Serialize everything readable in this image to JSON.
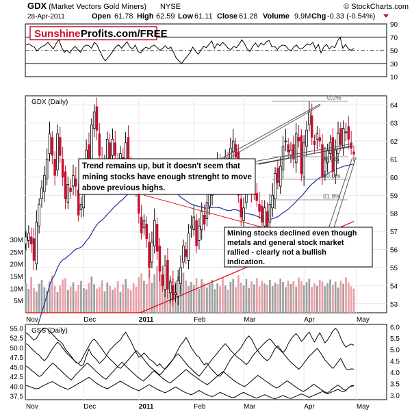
{
  "header": {
    "symbol": "GDX",
    "name": "(Market Vectors Gold Miners)",
    "exchange": "NYSE",
    "source": "© StockCharts.com",
    "date": "28-Apr-2011",
    "open_label": "Open",
    "open": "61.78",
    "high_label": "High",
    "high": "62.59",
    "low_label": "Low",
    "low": "61.11",
    "close_label": "Close",
    "close": "61.28",
    "volume_label": "Volume",
    "volume": "9.9M",
    "chg_label": "Chg",
    "chg": "-0.33 (-0.54%)"
  },
  "logo": {
    "text1": "Sunshine",
    "text2": "Profits.com/FREE"
  },
  "colors": {
    "up": "#000000",
    "down": "#c8102e",
    "ma50": "#1f2fa0",
    "ma200": "#e00000",
    "vol_up": "#a0a0a0",
    "vol_down": "#e8a0a8",
    "trend": "#e02020",
    "fib": "#555555"
  },
  "chart_data": [
    {
      "type": "line",
      "panel": "rsi",
      "yticks": [
        10,
        30,
        50,
        70,
        90
      ],
      "ylim": [
        10,
        90
      ],
      "values": [
        58,
        60,
        57,
        55,
        49,
        53,
        56,
        58,
        62,
        57,
        52,
        60,
        66,
        55,
        47,
        50,
        46,
        52,
        56,
        51,
        47,
        55,
        58,
        57,
        53,
        62,
        58,
        49,
        40,
        34,
        39,
        44,
        50,
        56,
        58,
        53,
        58,
        63,
        55,
        52,
        58,
        48,
        46,
        52,
        55,
        52,
        56,
        58,
        54,
        50,
        53,
        57,
        52,
        55,
        47,
        38,
        34,
        30,
        36,
        41,
        46,
        55,
        49,
        44,
        50,
        56,
        54,
        59,
        64,
        53,
        60,
        57,
        62,
        58,
        53,
        51,
        56,
        54,
        59,
        66,
        60,
        52,
        48,
        56,
        61,
        55,
        61,
        58,
        63,
        65,
        55,
        56,
        51,
        56,
        58,
        57,
        52,
        49,
        55,
        58,
        53,
        52,
        56,
        60,
        58,
        62,
        52,
        59,
        46,
        55,
        59,
        52,
        56,
        54,
        64,
        70,
        53,
        59,
        52,
        50,
        53
      ]
    },
    {
      "type": "candlestick",
      "panel": "price",
      "title": "GDX (Daily)",
      "yticks": [
        53,
        54,
        55,
        56,
        57,
        58,
        59,
        60,
        61,
        62,
        63,
        64
      ],
      "ylim": [
        52.5,
        64.5
      ],
      "vol_ticks": [
        "5M",
        "10M",
        "15M",
        "20M",
        "25M",
        "30M"
      ],
      "vol_max": 30,
      "x_labels": [
        "Nov",
        "Dec",
        "2011",
        "Feb",
        "Mar",
        "Apr",
        "May"
      ],
      "x_label_day_index": [
        0,
        22,
        43,
        64,
        83,
        106,
        126
      ],
      "closes": [
        56.7,
        56.9,
        56.3,
        55.4,
        57.5,
        58.5,
        59.4,
        60.1,
        61.0,
        62.4,
        61.2,
        60.1,
        62.4,
        61.2,
        60.0,
        58.8,
        59.6,
        59.2,
        60.1,
        59.5,
        57.9,
        58.5,
        59.9,
        61.5,
        60.7,
        62.9,
        63.6,
        62.6,
        61.2,
        59.5,
        60.9,
        62.1,
        60.9,
        62.1,
        61.2,
        60.6,
        61.3,
        60.2,
        61.9,
        61.0,
        60.6,
        59.9,
        59.4,
        58.0,
        56.9,
        57.6,
        56.6,
        55.0,
        56.4,
        57.6,
        55.9,
        54.8,
        54.0,
        55.1,
        53.8,
        54.2,
        53.2,
        53.6,
        54.3,
        55.0,
        56.2,
        55.6,
        56.9,
        57.3,
        57.8,
        56.2,
        57.3,
        58.1,
        57.4,
        58.6,
        59.2,
        59.7,
        60.4,
        60.8,
        60.0,
        59.8,
        61.1,
        60.2,
        61.6,
        62.0,
        61.1,
        59.0,
        57.8,
        58.3,
        59.7,
        60.1,
        59.1,
        59.3,
        58.7,
        58.1,
        57.5,
        58.3,
        57.2,
        58.5,
        59.0,
        60.2,
        59.7,
        60.6,
        61.7,
        62.0,
        61.4,
        61.5,
        61.0,
        62.4,
        62.0,
        60.2,
        61.9,
        62.6,
        63.6,
        62.2,
        61.8,
        62.4,
        62.0,
        60.0,
        61.0,
        61.5,
        61.9,
        60.3,
        61.5,
        62.4,
        61.8,
        62.7,
        62.5,
        62.1,
        61.6,
        61.28
      ],
      "volumes": [
        12.1,
        9.8,
        14.6,
        10.2,
        8.7,
        11.9,
        13.4,
        10.5,
        9.1,
        12.8,
        15.2,
        10.9,
        8.4,
        11.1,
        13.6,
        14.2,
        9.3,
        10.8,
        12.5,
        8.9,
        11.4,
        13.0,
        10.1,
        9.6,
        12.2,
        14.8,
        11.7,
        9.9,
        10.6,
        13.3,
        8.8,
        12.4,
        11.0,
        9.4,
        10.3,
        12.9,
        8.6,
        11.6,
        13.8,
        10.0,
        9.2,
        12.1,
        10.7,
        14.5,
        16.2,
        13.1,
        11.8,
        17.5,
        12.3,
        15.8,
        19.2,
        16.9,
        14.4,
        18.1,
        15.2,
        13.6,
        17.3,
        12.8,
        14.9,
        11.5,
        16.4,
        13.2,
        10.9,
        12.6,
        11.3,
        14.1,
        9.8,
        13.7,
        12.2,
        10.4,
        11.9,
        13.5,
        9.7,
        12.0,
        10.8,
        14.6,
        11.2,
        9.5,
        12.7,
        13.9,
        10.6,
        15.3,
        12.4,
        11.1,
        13.8,
        10.2,
        12.9,
        11.6,
        14.2,
        10.8,
        13.1,
        12.0,
        11.4,
        13.5,
        10.9,
        12.3,
        11.7,
        14.0,
        12.6,
        10.5,
        13.2,
        11.8,
        12.9,
        10.7,
        14.4,
        13.0,
        11.3,
        12.5,
        13.9,
        10.6,
        12.1,
        11.0,
        13.4,
        12.8,
        10.9,
        12.2,
        13.6,
        11.5,
        12.7,
        10.3,
        13.1,
        11.9,
        14.5,
        12.4,
        10.8,
        9.9
      ]
    },
    {
      "type": "line",
      "panel": "comparison",
      "title": "GSS (Daily)",
      "yticks_left": [
        37.5,
        40.0,
        42.5,
        45.0,
        47.5,
        50.0,
        52.5,
        55.0
      ],
      "ylim_left": [
        36.5,
        56.0
      ],
      "yticks_right": [
        3.0,
        3.5,
        4.0,
        4.5,
        5.0,
        5.5,
        6.0
      ],
      "ylim_right": [
        2.8,
        6.1
      ],
      "x_labels": [
        "Nov",
        "Dec",
        "2011",
        "Feb",
        "Mar",
        "Apr",
        "May"
      ],
      "x_label_day_index": [
        0,
        22,
        43,
        64,
        83,
        106,
        126
      ],
      "series": [
        {
          "values": [
            53.8,
            53.4,
            52.6,
            51.9,
            52.4,
            53.6,
            54.5,
            55.1,
            54.9,
            54.2,
            53.5,
            52.8,
            52.0,
            51.6,
            50.9,
            49.6,
            48.8,
            48.0,
            47.0,
            46.2,
            45.8,
            45.2,
            45.7,
            47.8,
            49.6,
            48.2,
            47.5,
            46.8,
            45.9,
            46.5,
            47.2,
            48.3,
            49.4,
            50.1,
            50.8,
            51.4,
            52.0,
            53.1,
            54.0,
            52.8,
            51.6,
            50.1,
            48.7,
            47.5,
            47.9,
            48.6,
            47.9,
            47.0,
            46.6,
            46.0,
            45.2,
            45.8,
            44.9,
            44.4,
            45.1,
            46.0,
            46.8,
            48.2,
            49.5,
            50.7,
            51.5,
            52.6,
            51.4,
            50.0,
            49.0,
            48.0,
            47.5,
            46.4,
            45.5,
            46.0,
            45.0,
            44.2,
            43.5,
            42.8,
            42.6,
            43.4,
            44.5,
            45.8,
            46.9,
            47.8,
            48.5,
            49.2,
            50.0,
            51.2,
            52.3,
            53.0,
            52.2,
            50.8,
            49.5,
            48.6,
            47.8,
            47.1,
            46.6,
            47.2,
            48.5,
            49.8,
            50.4,
            49.6,
            48.7,
            49.5,
            51.0,
            52.1,
            53.0,
            53.6,
            52.8,
            51.6,
            52.3,
            53.3,
            54.0,
            52.6,
            51.4,
            52.7,
            53.8,
            52.6,
            51.2,
            52.0,
            53.1,
            54.3,
            55.0,
            54.2,
            52.5,
            51.0,
            50.1,
            50.6,
            50.9,
            50.6
          ]
        },
        {
          "values": [
            51.0,
            50.6,
            49.8,
            49.2,
            48.5,
            48.0,
            47.2,
            46.6,
            47.3,
            48.5,
            49.6,
            50.5,
            51.4,
            50.8,
            49.9,
            49.0,
            48.2,
            47.6,
            46.9,
            46.3,
            45.8,
            46.6,
            47.9,
            49.2,
            50.4,
            51.6,
            52.2,
            51.4,
            50.5,
            49.6,
            48.6,
            47.8,
            47.0,
            46.4,
            45.7,
            45.0,
            44.6,
            45.3,
            46.0,
            46.8,
            47.6,
            48.4,
            49.2,
            48.5,
            47.8,
            46.9,
            46.0,
            45.2,
            44.6,
            44.1,
            43.5,
            42.9,
            43.6,
            44.5,
            45.3,
            46.1,
            46.9,
            47.8,
            48.4,
            47.6,
            46.8,
            45.9,
            45.1,
            44.5,
            43.8,
            43.2,
            42.6,
            43.4,
            44.3,
            45.2,
            46.1,
            47.0,
            47.8,
            48.6,
            49.5,
            50.3,
            51.0,
            50.2,
            49.3,
            48.6,
            47.9,
            47.3,
            46.8,
            46.2,
            45.6,
            46.3,
            47.4,
            48.3,
            49.1,
            49.8,
            50.5,
            51.2,
            51.8,
            52.3,
            51.5,
            50.6,
            49.9,
            49.3,
            48.6,
            47.8,
            46.9,
            46.2,
            45.6,
            45.0,
            44.4,
            45.1,
            46.0,
            46.9,
            47.8,
            48.4,
            49.1,
            49.8,
            48.9,
            47.9,
            46.8,
            46.0,
            45.3,
            44.6,
            45.4,
            46.3,
            47.2,
            45.8,
            44.5,
            44.2,
            44.5,
            44.4
          ]
        },
        {
          "values": [
            45.2,
            44.8,
            44.1,
            43.6,
            43.0,
            42.5,
            42.9,
            43.8,
            44.5,
            45.3,
            46.0,
            45.4,
            44.7,
            44.1,
            43.4,
            42.8,
            42.1,
            41.6,
            42.4,
            43.2,
            43.9,
            44.6,
            45.3,
            46.0,
            45.4,
            44.7,
            44.0,
            43.4,
            42.8,
            42.2,
            41.8,
            42.5,
            43.3,
            44.0,
            44.8,
            45.5,
            46.2,
            45.5,
            44.8,
            44.2,
            43.5,
            42.9,
            42.3,
            41.8,
            41.3,
            41.9,
            42.6,
            43.3,
            44.0,
            43.4,
            42.8,
            42.2,
            41.7,
            41.2,
            40.8,
            41.3,
            41.9,
            42.5,
            43.1,
            43.7,
            44.3,
            43.8,
            43.2,
            42.7,
            42.2,
            41.7,
            41.2,
            40.8,
            40.4,
            40.9,
            41.5,
            42.1,
            42.7,
            43.3,
            43.8,
            43.2,
            42.6,
            42.0,
            41.5,
            41.0,
            40.6,
            40.2,
            39.9,
            40.4,
            41.0,
            41.6,
            42.2,
            42.8,
            42.3,
            41.8,
            41.3,
            40.8,
            40.3,
            39.9,
            39.5,
            39.9,
            40.4,
            40.9,
            41.4,
            40.9,
            40.4,
            39.9,
            39.4,
            39.0,
            38.6,
            39.0,
            39.5,
            40.0,
            40.5,
            40.0,
            39.5,
            39.0,
            38.6,
            38.2,
            38.7,
            39.3,
            39.8,
            40.3,
            39.8,
            39.2,
            38.9,
            39.6,
            40.1,
            40.2
          ]
        },
        {
          "values": [
            40.2,
            40.0,
            39.7,
            39.5,
            39.3,
            39.5,
            39.9,
            40.3,
            40.6,
            40.9,
            41.2,
            40.8,
            40.4,
            40.0,
            39.7,
            39.4,
            39.2,
            39.5,
            39.9,
            40.3,
            40.7,
            41.1,
            41.5,
            41.9,
            42.3,
            41.8,
            41.2,
            40.7,
            40.3,
            39.9,
            39.6,
            39.3,
            39.7,
            40.1,
            40.5,
            40.9,
            41.3,
            40.9,
            40.5,
            40.1,
            39.7,
            39.4,
            39.1,
            38.8,
            39.2,
            39.6,
            40.0,
            40.4,
            40.0,
            39.6,
            39.2,
            38.9,
            38.6,
            38.3,
            38.6,
            39.0,
            39.4,
            39.8,
            39.4,
            39.0,
            38.6,
            38.3,
            38.0,
            37.8,
            38.1,
            38.5,
            38.9,
            38.5,
            38.1,
            37.8,
            37.5,
            37.3,
            37.6,
            38.0,
            38.4,
            38.1,
            37.8,
            37.5,
            37.2,
            37.0,
            37.3,
            37.7,
            38.1,
            38.4,
            38.0,
            37.7,
            37.4,
            37.1,
            36.9,
            37.2,
            37.5,
            37.8,
            37.5,
            37.2,
            36.9,
            36.7,
            37.0,
            37.3,
            37.6,
            37.3,
            37.0,
            36.8,
            37.1,
            37.4,
            37.7,
            38.0,
            37.7,
            37.4,
            37.1,
            37.4,
            37.7,
            38.0,
            38.3,
            38.6,
            38.3,
            38.0,
            38.3,
            38.6,
            38.9,
            39.2,
            38.8,
            38.5,
            38.9,
            39.6,
            40.0,
            40.1
          ]
        }
      ]
    }
  ],
  "fib_labels": [
    "0.0%",
    "38.2%",
    "50.0%",
    "61.8%"
  ],
  "annotations": [
    {
      "text": "Trend remains up, but it doesn't seem that mining stocks have enough strenght to move above previous highs."
    },
    {
      "text": "Mining stocks declined even though metals and general stock market rallied - clearly not a bullish indication."
    }
  ]
}
